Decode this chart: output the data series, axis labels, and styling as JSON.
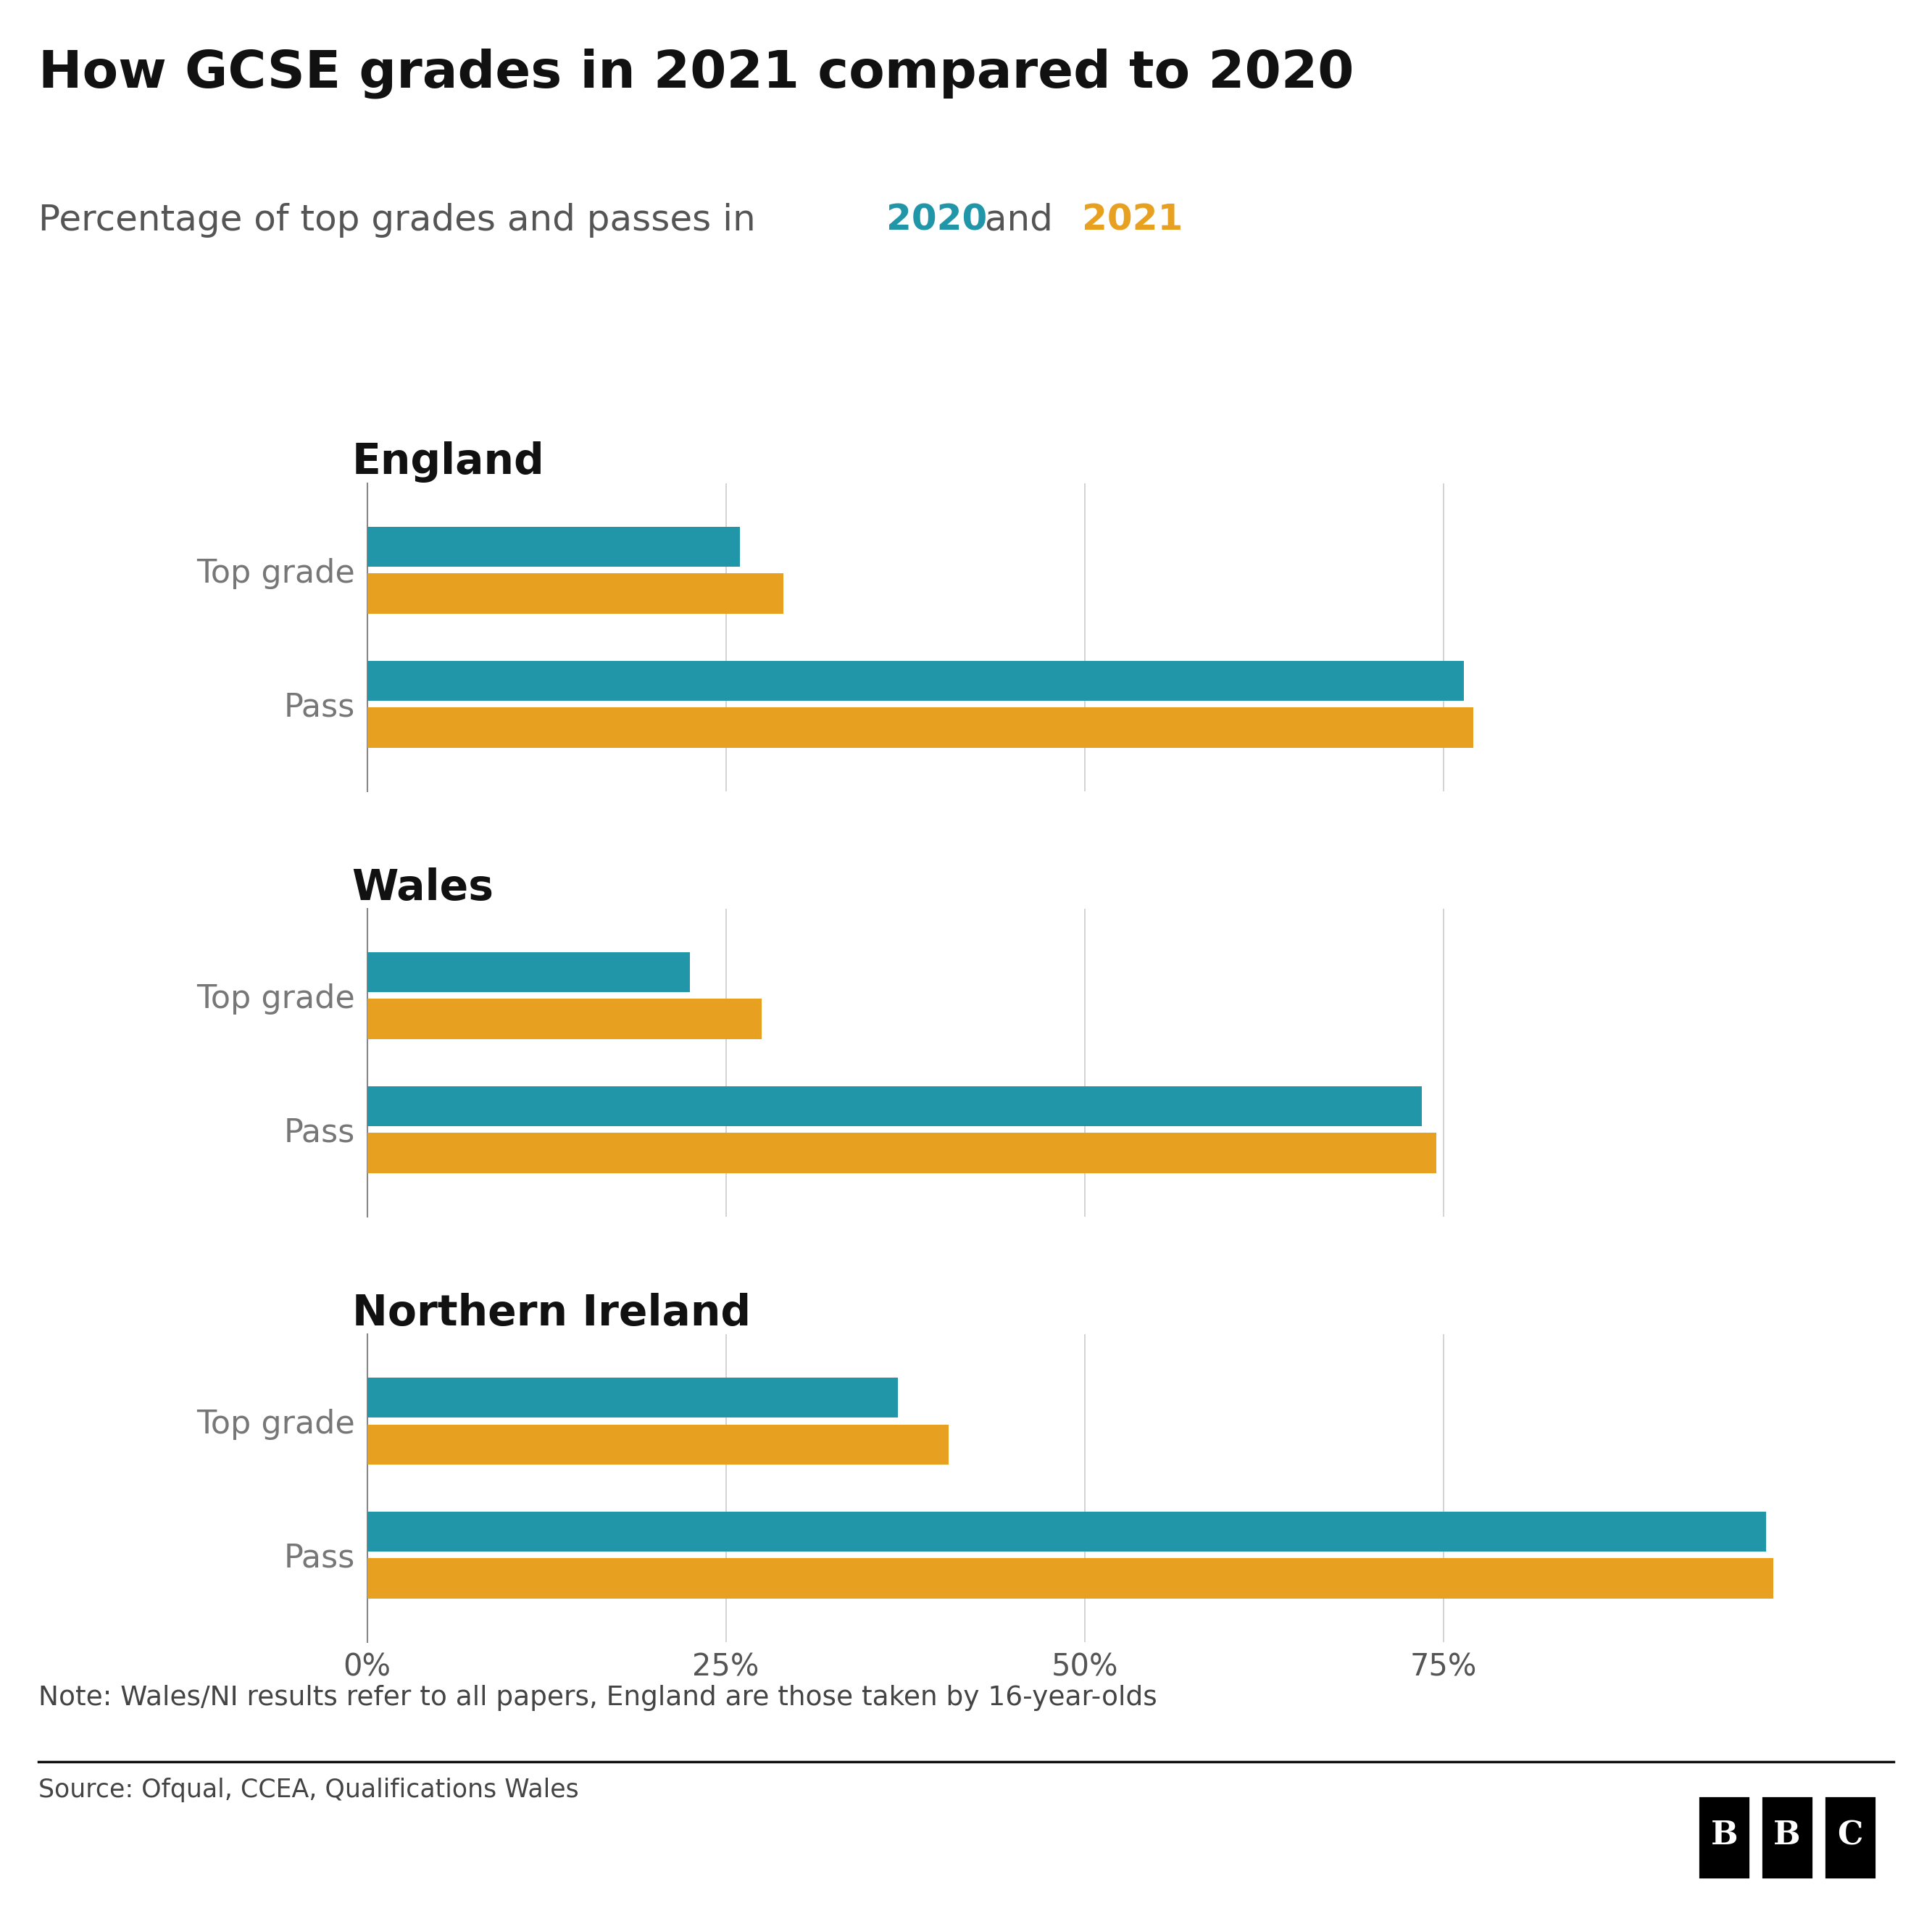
{
  "title": "How GCSE grades in 2021 compared to 2020",
  "subtitle_prefix": "Percentage of top grades and passes in ",
  "subtitle_2020": "2020",
  "subtitle_and": " and ",
  "subtitle_2021": "2021",
  "color_2020": "#2196a8",
  "color_2021": "#e8a020",
  "background_color": "#ffffff",
  "note": "Note: Wales/NI results refer to all papers, England are those taken by 16-year-olds",
  "source": "Source: Ofqual, CCEA, Qualifications Wales",
  "sections": [
    {
      "name": "England",
      "categories": [
        "Top grade",
        "Pass"
      ],
      "values_2020": [
        26.0,
        76.4
      ],
      "values_2021": [
        29.0,
        77.1
      ]
    },
    {
      "name": "Wales",
      "categories": [
        "Top grade",
        "Pass"
      ],
      "values_2020": [
        22.5,
        73.5
      ],
      "values_2021": [
        27.5,
        74.5
      ]
    },
    {
      "name": "Northern Ireland",
      "categories": [
        "Top grade",
        "Pass"
      ],
      "values_2020": [
        37.0,
        97.5
      ],
      "values_2021": [
        40.5,
        98.0
      ]
    }
  ],
  "xlim": [
    0,
    105
  ],
  "xticks": [
    0,
    25,
    50,
    75
  ],
  "xticklabels": [
    "0%",
    "25%",
    "50%",
    "75%"
  ],
  "title_fontsize": 52,
  "subtitle_fontsize": 36,
  "section_label_fontsize": 42,
  "category_fontsize": 32,
  "tick_fontsize": 30,
  "note_fontsize": 27,
  "source_fontsize": 25,
  "bbc_fontsize": 32
}
